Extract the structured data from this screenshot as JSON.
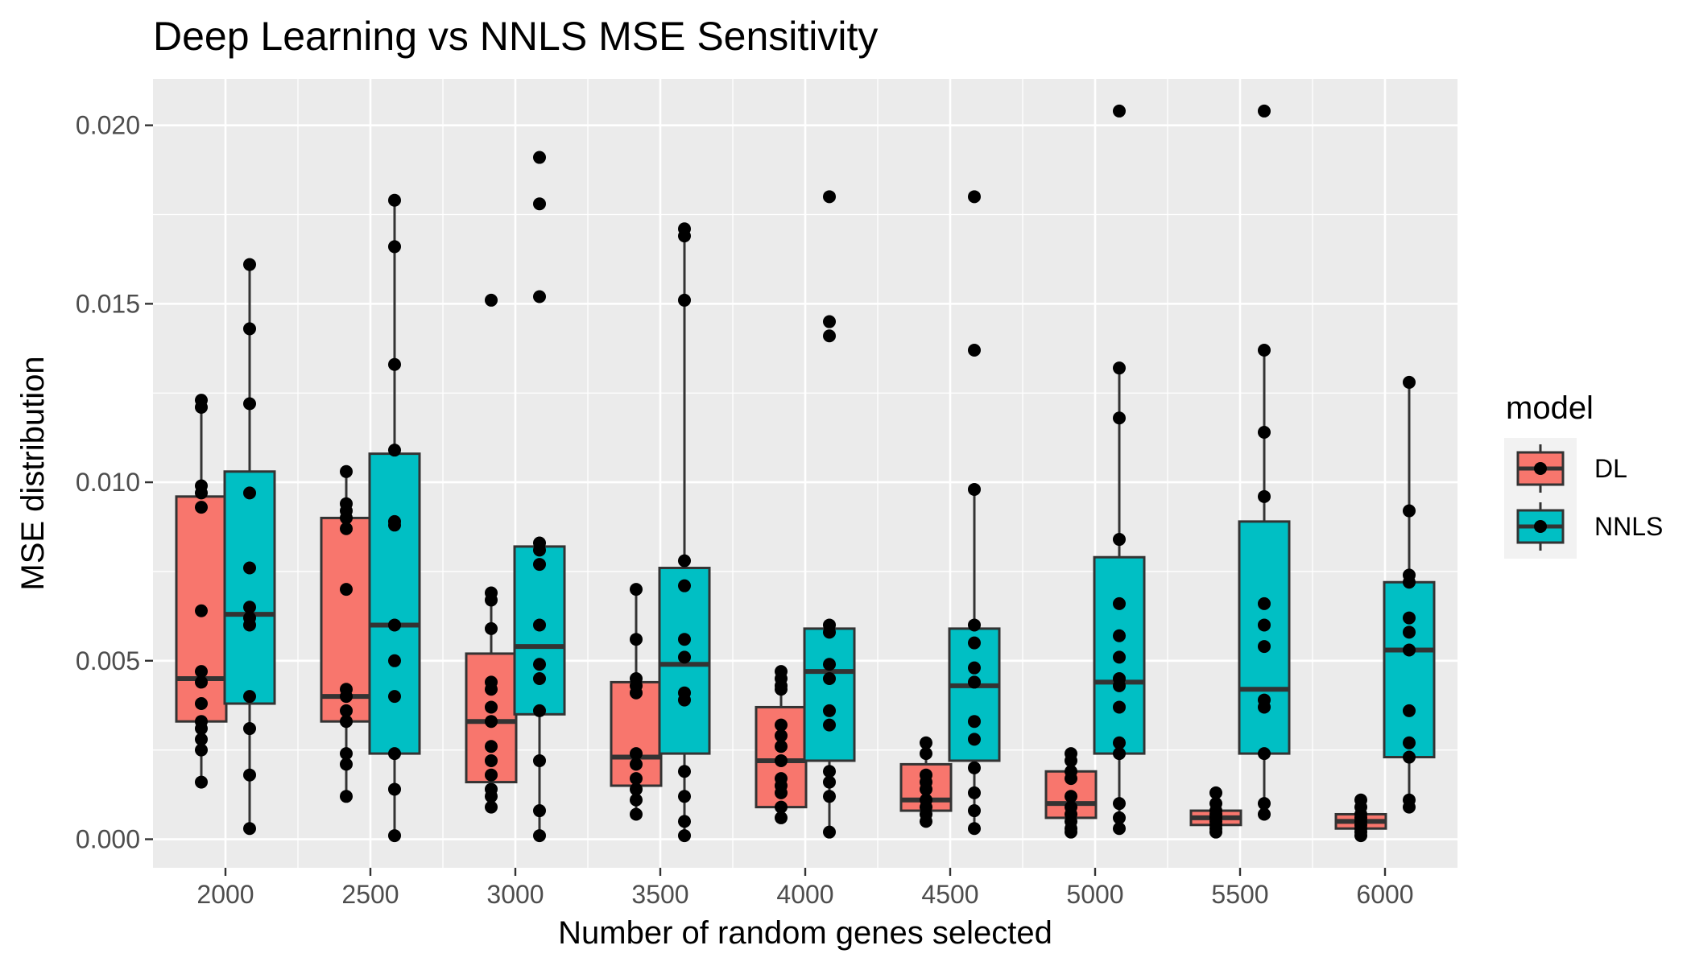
{
  "chart_data": {
    "type": "boxplot",
    "title": "Deep Learning vs NNLS MSE Sensitivity",
    "xlabel": "Number of random genes selected",
    "ylabel": "MSE distribution",
    "categories": [
      "2000",
      "2500",
      "3000",
      "3500",
      "4000",
      "4500",
      "5000",
      "5500",
      "6000"
    ],
    "ylim": [
      -0.0008,
      0.0213
    ],
    "yticks": [
      {
        "value": 0.0,
        "label": "0.000"
      },
      {
        "value": 0.005,
        "label": "0.005"
      },
      {
        "value": 0.01,
        "label": "0.010"
      },
      {
        "value": 0.015,
        "label": "0.015"
      },
      {
        "value": 0.02,
        "label": "0.020"
      }
    ],
    "grid": true,
    "legend": {
      "title": "model",
      "position": "right"
    },
    "series": [
      {
        "name": "DL",
        "color": "#F8766D",
        "boxes": [
          {
            "q1": 0.0033,
            "median": 0.0045,
            "q3": 0.0096,
            "whisker_low": 0.0016,
            "whisker_high": 0.0123,
            "points": [
              0.0123,
              0.0121,
              0.0099,
              0.0097,
              0.0093,
              0.0064,
              0.0047,
              0.0044,
              0.0038,
              0.0033,
              0.0031,
              0.0028,
              0.0025,
              0.0016
            ]
          },
          {
            "q1": 0.0033,
            "median": 0.004,
            "q3": 0.009,
            "whisker_low": 0.0012,
            "whisker_high": 0.0103,
            "points": [
              0.0103,
              0.0094,
              0.0092,
              0.009,
              0.0087,
              0.007,
              0.0042,
              0.004,
              0.0036,
              0.0033,
              0.0024,
              0.0021,
              0.0012
            ]
          },
          {
            "q1": 0.0016,
            "median": 0.0033,
            "q3": 0.0052,
            "whisker_low": 0.0009,
            "whisker_high": 0.0069,
            "points": [
              0.0151,
              0.0069,
              0.0067,
              0.0059,
              0.0044,
              0.0042,
              0.0037,
              0.0033,
              0.0026,
              0.0022,
              0.0018,
              0.0014,
              0.0012,
              0.0009
            ]
          },
          {
            "q1": 0.0015,
            "median": 0.0023,
            "q3": 0.0044,
            "whisker_low": 0.0007,
            "whisker_high": 0.007,
            "points": [
              0.007,
              0.0056,
              0.0045,
              0.0043,
              0.0041,
              0.0024,
              0.0021,
              0.0017,
              0.0014,
              0.0011,
              0.0007
            ]
          },
          {
            "q1": 0.0009,
            "median": 0.0022,
            "q3": 0.0037,
            "whisker_low": 0.0006,
            "whisker_high": 0.0047,
            "points": [
              0.0047,
              0.0045,
              0.0043,
              0.0042,
              0.0032,
              0.0029,
              0.0026,
              0.0022,
              0.0017,
              0.0015,
              0.0013,
              0.0009,
              0.0006
            ]
          },
          {
            "q1": 0.0008,
            "median": 0.0011,
            "q3": 0.0021,
            "whisker_low": 0.0005,
            "whisker_high": 0.0027,
            "points": [
              0.0027,
              0.0024,
              0.0018,
              0.0016,
              0.0014,
              0.0011,
              0.0009,
              0.0007,
              0.0005
            ]
          },
          {
            "q1": 0.0006,
            "median": 0.001,
            "q3": 0.0019,
            "whisker_low": 0.0002,
            "whisker_high": 0.0024,
            "points": [
              0.0024,
              0.0022,
              0.0019,
              0.0017,
              0.0012,
              0.0009,
              0.0007,
              0.0005,
              0.0003,
              0.0002
            ]
          },
          {
            "q1": 0.0004,
            "median": 0.0006,
            "q3": 0.0008,
            "whisker_low": 0.0002,
            "whisker_high": 0.0013,
            "points": [
              0.0013,
              0.001,
              0.0008,
              0.0007,
              0.0006,
              0.0005,
              0.0004,
              0.0003,
              0.0002
            ]
          },
          {
            "q1": 0.0003,
            "median": 0.0005,
            "q3": 0.0007,
            "whisker_low": 0.0001,
            "whisker_high": 0.0011,
            "points": [
              0.0011,
              0.0009,
              0.0007,
              0.0006,
              0.0005,
              0.0004,
              0.0003,
              0.0002,
              0.0001
            ]
          }
        ]
      },
      {
        "name": "NNLS",
        "color": "#00BFC4",
        "boxes": [
          {
            "q1": 0.0038,
            "median": 0.0063,
            "q3": 0.0103,
            "whisker_low": 0.0003,
            "whisker_high": 0.0161,
            "points": [
              0.0161,
              0.0143,
              0.0122,
              0.0097,
              0.0076,
              0.0065,
              0.0062,
              0.006,
              0.004,
              0.0031,
              0.0018,
              0.0003
            ]
          },
          {
            "q1": 0.0024,
            "median": 0.006,
            "q3": 0.0108,
            "whisker_low": 0.0001,
            "whisker_high": 0.0179,
            "points": [
              0.0179,
              0.0166,
              0.0133,
              0.0109,
              0.0089,
              0.0088,
              0.006,
              0.005,
              0.004,
              0.0024,
              0.0014,
              0.0001
            ]
          },
          {
            "q1": 0.0035,
            "median": 0.0054,
            "q3": 0.0082,
            "whisker_low": 0.0001,
            "whisker_high": 0.0083,
            "points": [
              0.0191,
              0.0178,
              0.0152,
              0.0083,
              0.0081,
              0.0077,
              0.006,
              0.0049,
              0.0045,
              0.0036,
              0.0022,
              0.0008,
              0.0001
            ]
          },
          {
            "q1": 0.0024,
            "median": 0.0049,
            "q3": 0.0076,
            "whisker_low": 0.0001,
            "whisker_high": 0.0171,
            "points": [
              0.0171,
              0.0169,
              0.0151,
              0.0078,
              0.0071,
              0.0056,
              0.0051,
              0.0041,
              0.0039,
              0.0019,
              0.0012,
              0.0005,
              0.0001
            ]
          },
          {
            "q1": 0.0022,
            "median": 0.0047,
            "q3": 0.0059,
            "whisker_low": 0.0002,
            "whisker_high": 0.006,
            "points": [
              0.018,
              0.0145,
              0.0141,
              0.006,
              0.0058,
              0.0049,
              0.0045,
              0.0036,
              0.0032,
              0.0019,
              0.0016,
              0.0012,
              0.0002
            ]
          },
          {
            "q1": 0.0022,
            "median": 0.0043,
            "q3": 0.0059,
            "whisker_low": 0.0003,
            "whisker_high": 0.0098,
            "points": [
              0.018,
              0.0137,
              0.0098,
              0.006,
              0.0055,
              0.0048,
              0.0044,
              0.0033,
              0.0028,
              0.002,
              0.0013,
              0.0008,
              0.0003
            ]
          },
          {
            "q1": 0.0024,
            "median": 0.0044,
            "q3": 0.0079,
            "whisker_low": 0.0003,
            "whisker_high": 0.0132,
            "points": [
              0.0204,
              0.0132,
              0.0118,
              0.0084,
              0.0066,
              0.0057,
              0.0051,
              0.0045,
              0.0043,
              0.0037,
              0.0027,
              0.0024,
              0.001,
              0.0006,
              0.0003
            ]
          },
          {
            "q1": 0.0024,
            "median": 0.0042,
            "q3": 0.0089,
            "whisker_low": 0.0007,
            "whisker_high": 0.0137,
            "points": [
              0.0204,
              0.0137,
              0.0114,
              0.0096,
              0.0066,
              0.006,
              0.0054,
              0.0039,
              0.0037,
              0.0024,
              0.001,
              0.0007
            ]
          },
          {
            "q1": 0.0023,
            "median": 0.0053,
            "q3": 0.0072,
            "whisker_low": 0.0009,
            "whisker_high": 0.0128,
            "points": [
              0.0128,
              0.0092,
              0.0074,
              0.0072,
              0.0062,
              0.0058,
              0.0053,
              0.0036,
              0.0027,
              0.0023,
              0.0011,
              0.0009
            ]
          }
        ]
      }
    ]
  }
}
